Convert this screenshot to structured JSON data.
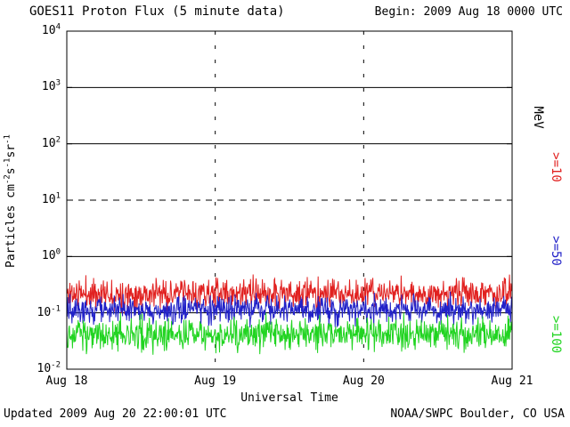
{
  "header": {
    "title": "GOES11 Proton Flux (5 minute data)",
    "begin_label": "Begin: 2009 Aug 18 0000 UTC"
  },
  "footer": {
    "updated": "Updated 2009 Aug 20 22:00:01 UTC",
    "credit": "NOAA/SWPC Boulder, CO USA"
  },
  "chart_data": {
    "type": "line",
    "title": "GOES11 Proton Flux (5 minute data)",
    "xlabel": "Universal Time",
    "ylabel": "Particles cm⁻²s⁻¹sr⁻¹",
    "ylabel_parts": [
      {
        "t": "Particles cm"
      },
      {
        "sup": "-2"
      },
      {
        "t": "s"
      },
      {
        "sup": "-1"
      },
      {
        "t": "sr"
      },
      {
        "sup": "-1"
      }
    ],
    "right_axis_unit": "MeV",
    "ylim": [
      0.01,
      10000
    ],
    "y_scale": "log",
    "y_tick_base": "10",
    "y_tick_exponents": [
      4,
      3,
      2,
      1,
      0,
      -1,
      -2
    ],
    "x_ticks": [
      "Aug 18",
      "Aug 19",
      "Aug 20",
      "Aug 21"
    ],
    "days": 3,
    "points_per_day": 288,
    "grid": true,
    "dashed_gridline_value": 10,
    "legend_position": "right",
    "axis_color": "#000000",
    "series": [
      {
        "name": ">=10",
        "color": "#e12120",
        "mean_flux": 0.22,
        "log10_sigma": 0.13,
        "min_flux": 0.09,
        "max_flux": 0.55,
        "seed": 11
      },
      {
        "name": ">=50",
        "color": "#2121c8",
        "mean_flux": 0.115,
        "log10_sigma": 0.12,
        "min_flux": 0.055,
        "max_flux": 0.28,
        "seed": 52
      },
      {
        "name": ">=100",
        "color": "#21d421",
        "mean_flux": 0.042,
        "log10_sigma": 0.14,
        "min_flux": 0.018,
        "max_flux": 0.1,
        "seed": 103
      }
    ]
  }
}
